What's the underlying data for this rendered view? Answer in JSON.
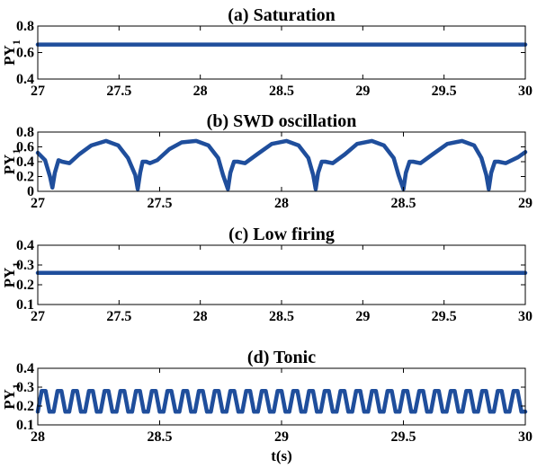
{
  "chart_data": [
    {
      "type": "line",
      "title": "(a) Saturation",
      "ylabel": "PY",
      "ylabel_sub": "1",
      "xlim": [
        27,
        30
      ],
      "ylim": [
        0.4,
        0.8
      ],
      "xticks": [
        27,
        27.5,
        28,
        28.5,
        29,
        29.5,
        30
      ],
      "yticks": [
        0.4,
        0.6,
        0.8
      ],
      "xtick_labels": [
        "27",
        "27.5",
        "28",
        "28.5",
        "29",
        "29.5",
        "30"
      ],
      "ytick_labels": [
        "0.4",
        "0.6",
        "0.8"
      ],
      "series": [
        {
          "x": [
            27,
            30
          ],
          "y": [
            0.66,
            0.66
          ]
        }
      ],
      "line_color": "#1f4e9c"
    },
    {
      "type": "line",
      "title": "(b) SWD oscillation",
      "ylabel": "PY",
      "ylabel_sub": "1",
      "xlim": [
        27,
        29
      ],
      "ylim": [
        0,
        0.8
      ],
      "xticks": [
        27,
        27.5,
        28,
        28.5,
        29
      ],
      "yticks": [
        0,
        0.2,
        0.4,
        0.6,
        0.8
      ],
      "xtick_labels": [
        "27",
        "27.5",
        "28",
        "28.5",
        "29"
      ],
      "ytick_labels": [
        "0",
        "0.2",
        "0.4",
        "0.6",
        "0.8"
      ],
      "series": [
        {
          "x": [
            27.0,
            27.03,
            27.05,
            27.06,
            27.07,
            27.085,
            27.1,
            27.13,
            27.17,
            27.22,
            27.28,
            27.33,
            27.37,
            27.4,
            27.41,
            27.42,
            27.43,
            27.445,
            27.46,
            27.49,
            27.54,
            27.59,
            27.65,
            27.7,
            27.74,
            27.76,
            27.78,
            27.79,
            27.805,
            27.82,
            27.85,
            27.9,
            27.96,
            28.02,
            28.07,
            28.11,
            28.13,
            28.14,
            28.15,
            28.165,
            28.18,
            28.21,
            28.26,
            28.31,
            28.37,
            28.42,
            28.46,
            28.48,
            28.5,
            28.51,
            28.525,
            28.54,
            28.57,
            28.62,
            28.68,
            28.74,
            28.79,
            28.82,
            28.84,
            28.85,
            28.86,
            28.875,
            28.89,
            28.92,
            28.97,
            29.0
          ],
          "y": [
            0.52,
            0.42,
            0.2,
            0.05,
            0.25,
            0.42,
            0.4,
            0.38,
            0.5,
            0.62,
            0.68,
            0.62,
            0.45,
            0.22,
            0.03,
            0.25,
            0.4,
            0.4,
            0.38,
            0.42,
            0.57,
            0.66,
            0.68,
            0.62,
            0.45,
            0.22,
            0.03,
            0.25,
            0.4,
            0.4,
            0.38,
            0.5,
            0.64,
            0.68,
            0.62,
            0.45,
            0.22,
            0.03,
            0.25,
            0.4,
            0.4,
            0.38,
            0.5,
            0.64,
            0.68,
            0.62,
            0.45,
            0.22,
            0.03,
            0.25,
            0.4,
            0.4,
            0.38,
            0.5,
            0.64,
            0.68,
            0.62,
            0.45,
            0.22,
            0.03,
            0.25,
            0.4,
            0.4,
            0.38,
            0.46,
            0.53
          ]
        }
      ],
      "line_color": "#1f4e9c"
    },
    {
      "type": "line",
      "title": "(c) Low firing",
      "ylabel": "PY",
      "ylabel_sub": "1",
      "xlim": [
        27,
        30
      ],
      "ylim": [
        0.1,
        0.4
      ],
      "xticks": [
        27,
        27.5,
        28,
        28.5,
        29,
        29.5,
        30
      ],
      "yticks": [
        0.1,
        0.2,
        0.3,
        0.4
      ],
      "xtick_labels": [
        "27",
        "27.5",
        "28",
        "28.5",
        "29",
        "29.5",
        "30"
      ],
      "ytick_labels": [
        "0.1",
        "0.2",
        "0.3",
        "0.4"
      ],
      "series": [
        {
          "x": [
            27,
            30
          ],
          "y": [
            0.26,
            0.26
          ]
        }
      ],
      "line_color": "#1f4e9c"
    },
    {
      "type": "line",
      "title": "(d) Tonic",
      "ylabel": "PY",
      "ylabel_sub": "1",
      "xlabel": "t(s)",
      "xlim": [
        28,
        30
      ],
      "ylim": [
        0.1,
        0.4
      ],
      "xticks": [
        28,
        28.5,
        29,
        29.5,
        30
      ],
      "yticks": [
        0.1,
        0.2,
        0.3,
        0.4
      ],
      "xtick_labels": [
        "28",
        "28.5",
        "29",
        "29.5",
        "30"
      ],
      "ytick_labels": [
        "0.1",
        "0.2",
        "0.3",
        "0.4"
      ],
      "series": [
        {
          "x": [
            28.0,
            28.016,
            28.032,
            28.048,
            28.065,
            28.081,
            28.097,
            28.113,
            28.129,
            28.145,
            28.161,
            28.177,
            28.194,
            28.21,
            28.226,
            28.242,
            28.258,
            28.274,
            28.29,
            28.306,
            28.323,
            28.339,
            28.355,
            28.371,
            28.387,
            28.403,
            28.419,
            28.435,
            28.452,
            28.468,
            28.484,
            28.5,
            28.516,
            28.532,
            28.548,
            28.565,
            28.581,
            28.597,
            28.613,
            28.629,
            28.645,
            28.661,
            28.677,
            28.694,
            28.71,
            28.726,
            28.742,
            28.758,
            28.774,
            28.79,
            28.806,
            28.823,
            28.839,
            28.855,
            28.871,
            28.887,
            28.903,
            28.919,
            28.935,
            28.952,
            28.968,
            28.984,
            29.0,
            29.016,
            29.032,
            29.048,
            29.065,
            29.081,
            29.097,
            29.113,
            29.129,
            29.145,
            29.161,
            29.177,
            29.194,
            29.21,
            29.226,
            29.242,
            29.258,
            29.274,
            29.29,
            29.306,
            29.323,
            29.339,
            29.355,
            29.371,
            29.387,
            29.403,
            29.419,
            29.435,
            29.452,
            29.468,
            29.484,
            29.5,
            29.516,
            29.532,
            29.548,
            29.565,
            29.581,
            29.597,
            29.613,
            29.629,
            29.645,
            29.661,
            29.677,
            29.694,
            29.71,
            29.726,
            29.742,
            29.758,
            29.774,
            29.79,
            29.806,
            29.823,
            29.839,
            29.855,
            29.871,
            29.887,
            29.903,
            29.919,
            29.935,
            29.952,
            29.968,
            29.984,
            30.0
          ],
          "y": [
            0.17,
            0.28,
            0.28,
            0.17,
            0.17,
            0.28,
            0.28,
            0.17,
            0.17,
            0.28,
            0.28,
            0.17,
            0.17,
            0.28,
            0.28,
            0.17,
            0.17,
            0.28,
            0.28,
            0.17,
            0.17,
            0.28,
            0.28,
            0.17,
            0.17,
            0.28,
            0.28,
            0.17,
            0.17,
            0.28,
            0.28,
            0.17,
            0.17,
            0.28,
            0.28,
            0.17,
            0.17,
            0.28,
            0.28,
            0.17,
            0.17,
            0.28,
            0.28,
            0.17,
            0.17,
            0.28,
            0.28,
            0.17,
            0.17,
            0.28,
            0.28,
            0.17,
            0.17,
            0.28,
            0.28,
            0.17,
            0.17,
            0.28,
            0.28,
            0.17,
            0.17,
            0.28,
            0.28,
            0.17,
            0.17,
            0.28,
            0.28,
            0.17,
            0.17,
            0.28,
            0.28,
            0.17,
            0.17,
            0.28,
            0.28,
            0.17,
            0.17,
            0.28,
            0.28,
            0.17,
            0.17,
            0.28,
            0.28,
            0.17,
            0.17,
            0.28,
            0.28,
            0.17,
            0.17,
            0.28,
            0.28,
            0.17,
            0.17,
            0.28,
            0.28,
            0.17,
            0.17,
            0.28,
            0.28,
            0.17,
            0.17,
            0.28,
            0.28,
            0.17,
            0.17,
            0.28,
            0.28,
            0.17,
            0.17,
            0.28,
            0.28,
            0.17,
            0.17,
            0.28,
            0.28,
            0.17,
            0.17,
            0.28,
            0.28,
            0.17,
            0.17,
            0.28,
            0.28,
            0.17,
            0.17
          ]
        }
      ],
      "line_color": "#1f4e9c"
    }
  ]
}
